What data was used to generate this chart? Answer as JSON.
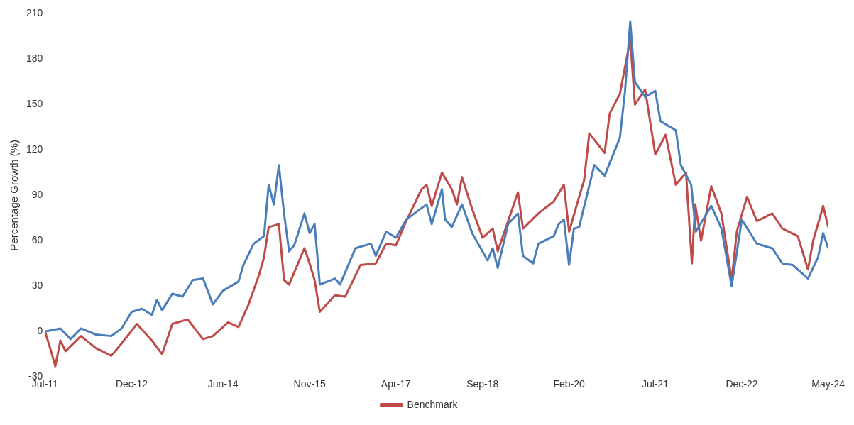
{
  "chart_data": {
    "type": "line",
    "ylabel": "Percentage Growth (%)",
    "legend": "bottom",
    "grid": false,
    "marker": "none",
    "line_style": "solid",
    "xlim": [
      "2011-07",
      "2024-05"
    ],
    "xticks": [
      {
        "value": "2011-07",
        "label": "Jul-11"
      },
      {
        "value": "2012-12",
        "label": "Dec-12"
      },
      {
        "value": "2014-06",
        "label": "Jun-14"
      },
      {
        "value": "2015-11",
        "label": "Nov-15"
      },
      {
        "value": "2017-04",
        "label": "Apr-17"
      },
      {
        "value": "2018-09",
        "label": "Sep-18"
      },
      {
        "value": "2020-02",
        "label": "Feb-20"
      },
      {
        "value": "2021-07",
        "label": "Jul-21"
      },
      {
        "value": "2022-12",
        "label": "Dec-22"
      },
      {
        "value": "2024-05",
        "label": "May-24"
      }
    ],
    "ylim": [
      -30,
      210
    ],
    "yticks": [
      -30,
      0,
      30,
      60,
      90,
      120,
      150,
      180,
      210
    ],
    "series": [
      {
        "color": "#4a7ebb",
        "x": [
          "2011-07",
          "2011-10",
          "2011-12",
          "2012-02",
          "2012-05",
          "2012-08",
          "2012-10",
          "2012-12",
          "2013-02",
          "2013-04",
          "2013-05",
          "2013-06",
          "2013-08",
          "2013-10",
          "2013-12",
          "2014-02",
          "2014-04",
          "2014-06",
          "2014-09",
          "2014-10",
          "2014-12",
          "2015-02",
          "2015-03",
          "2015-04",
          "2015-05",
          "2015-06",
          "2015-07",
          "2015-08",
          "2015-10",
          "2015-11",
          "2015-12",
          "2016-01",
          "2016-04",
          "2016-05",
          "2016-08",
          "2016-11",
          "2016-12",
          "2017-02",
          "2017-04",
          "2017-06",
          "2017-10",
          "2017-11",
          "2018-01-01",
          "2018-01-20",
          "2018-03",
          "2018-05",
          "2018-07",
          "2018-10",
          "2018-11",
          "2018-12",
          "2019-02",
          "2019-04",
          "2019-05",
          "2019-07",
          "2019-08",
          "2019-11",
          "2019-12",
          "2020-01",
          "2020-02",
          "2020-03",
          "2020-04",
          "2020-07",
          "2020-09",
          "2020-12",
          "2021-01",
          "2021-02",
          "2021-03",
          "2021-05",
          "2021-07",
          "2021-08",
          "2021-11",
          "2021-12",
          "2022-02",
          "2022-03",
          "2022-06",
          "2022-08",
          "2022-10",
          "2022-12",
          "2023-03",
          "2023-06",
          "2023-08",
          "2023-10",
          "2024-01",
          "2024-03",
          "2024-04",
          "2024-05"
        ],
        "values": [
          0,
          2,
          -5,
          2,
          -2,
          -3,
          2,
          13,
          15,
          11,
          21,
          14,
          25,
          23,
          34,
          35,
          18,
          27,
          33,
          44,
          58,
          63,
          97,
          84,
          110,
          78,
          53,
          57,
          78,
          65,
          71,
          31,
          35,
          31,
          55,
          58,
          50,
          66,
          62,
          74,
          84,
          71,
          94,
          74,
          69,
          84,
          65,
          47,
          55,
          42,
          71,
          78,
          50,
          45,
          58,
          63,
          71,
          74,
          44,
          68,
          69,
          110,
          103,
          128,
          159,
          205,
          165,
          155,
          159,
          139,
          133,
          110,
          97,
          66,
          83,
          68,
          30,
          74,
          58,
          55,
          45,
          44,
          35,
          49,
          65,
          55
        ]
      },
      {
        "name": "Benchmark",
        "color": "#be4b48",
        "x": [
          "2011-07",
          "2011-08",
          "2011-09",
          "2011-10",
          "2011-11",
          "2012-02",
          "2012-05",
          "2012-08",
          "2012-10",
          "2013-01",
          "2013-04",
          "2013-06",
          "2013-08",
          "2013-11",
          "2014-02",
          "2014-04",
          "2014-07",
          "2014-09",
          "2014-11",
          "2015-01",
          "2015-02",
          "2015-03",
          "2015-05",
          "2015-06",
          "2015-07",
          "2015-10",
          "2015-11",
          "2015-12",
          "2016-01",
          "2016-04",
          "2016-06",
          "2016-09",
          "2016-12",
          "2017-02",
          "2017-04",
          "2017-06",
          "2017-09",
          "2017-10",
          "2017-11",
          "2018-01",
          "2018-03",
          "2018-04",
          "2018-05",
          "2018-07",
          "2018-09",
          "2018-11",
          "2018-12",
          "2019-04",
          "2019-05",
          "2019-08",
          "2019-11",
          "2020-01",
          "2020-02",
          "2020-04",
          "2020-05",
          "2020-06",
          "2020-09",
          "2020-10",
          "2020-12",
          "2021-02",
          "2021-03",
          "2021-05",
          "2021-07",
          "2021-09",
          "2021-11",
          "2022-01",
          "2022-02-05",
          "2022-02-25",
          "2022-04",
          "2022-06",
          "2022-08",
          "2022-10",
          "2022-11",
          "2023-01",
          "2023-03",
          "2023-06",
          "2023-08",
          "2023-11",
          "2024-01",
          "2024-02",
          "2024-04",
          "2024-05"
        ],
        "values": [
          0,
          -11,
          -23,
          -6,
          -13,
          -3,
          -11,
          -16,
          -8,
          5,
          -6,
          -15,
          5,
          8,
          -5,
          -3,
          6,
          3,
          18,
          37,
          49,
          69,
          71,
          34,
          31,
          55,
          45,
          34,
          13,
          24,
          23,
          44,
          45,
          58,
          57,
          73,
          94,
          97,
          83,
          105,
          94,
          84,
          102,
          81,
          62,
          68,
          53,
          92,
          68,
          78,
          86,
          97,
          66,
          89,
          100,
          131,
          118,
          144,
          157,
          193,
          150,
          160,
          117,
          130,
          97,
          105,
          45,
          84,
          60,
          96,
          78,
          34,
          66,
          89,
          73,
          78,
          68,
          63,
          41,
          60,
          83,
          69
        ]
      }
    ]
  }
}
